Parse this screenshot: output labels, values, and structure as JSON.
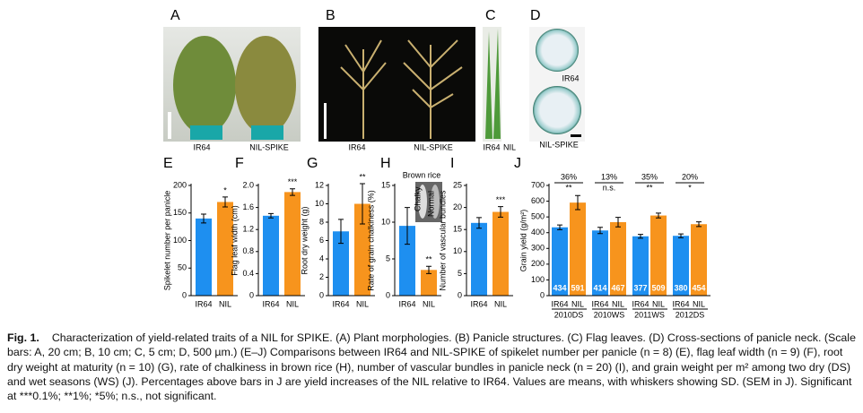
{
  "panels": [
    {
      "letter": "A",
      "labels": [
        "IR64",
        "NIL-SPIKE"
      ]
    },
    {
      "letter": "B",
      "labels": [
        "IR64",
        "NIL-SPIKE"
      ]
    },
    {
      "letter": "C",
      "labels": [
        "IR64",
        "NIL"
      ]
    },
    {
      "letter": "D",
      "labels": [
        "IR64",
        "NIL-SPIKE"
      ]
    }
  ],
  "inset": {
    "title": "Brown rice",
    "labels": [
      "Chalky",
      "Normal"
    ]
  },
  "chart_data": [
    {
      "type": "bar",
      "panel": "E",
      "ylabel": "Spikelet number per panicle",
      "categories": [
        "IR64",
        "NIL"
      ],
      "values": [
        140,
        170
      ],
      "errors": [
        8,
        9
      ],
      "colors": [
        "#1e8ff0",
        "#f7941d"
      ],
      "significance": "*",
      "ylim": [
        0,
        200
      ],
      "yticks": [
        0,
        50,
        100,
        150,
        200
      ]
    },
    {
      "type": "bar",
      "panel": "F",
      "ylabel": "Flag leaf width (cm)",
      "categories": [
        "IR64",
        "NIL"
      ],
      "values": [
        1.45,
        1.88
      ],
      "errors": [
        0.04,
        0.06
      ],
      "colors": [
        "#1e8ff0",
        "#f7941d"
      ],
      "significance": "***",
      "ylim": [
        0,
        2
      ],
      "yticks": [
        0,
        0.4,
        0.8,
        1.2,
        1.6,
        {
          "value": 2,
          "label": "2.0"
        }
      ]
    },
    {
      "type": "bar",
      "panel": "G",
      "ylabel": "Root dry weight (g)",
      "categories": [
        "IR64",
        "NIL"
      ],
      "values": [
        7,
        10
      ],
      "errors": [
        1.3,
        2.2
      ],
      "colors": [
        "#1e8ff0",
        "#f7941d"
      ],
      "significance": "**",
      "ylim": [
        0,
        12
      ],
      "yticks": [
        0,
        2,
        4,
        6,
        8,
        10,
        12
      ]
    },
    {
      "type": "bar",
      "panel": "H",
      "ylabel": "Rate of grain chalkiness (%)",
      "categories": [
        "IR64",
        "NIL"
      ],
      "values": [
        9.5,
        3.5
      ],
      "errors": [
        2.5,
        0.5
      ],
      "colors": [
        "#1e8ff0",
        "#f7941d"
      ],
      "significance": "**",
      "ylim": [
        0,
        15
      ],
      "yticks": [
        0,
        5,
        10,
        15
      ]
    },
    {
      "type": "bar",
      "panel": "I",
      "ylabel": "Number of vascular bundles",
      "categories": [
        "IR64",
        "NIL"
      ],
      "values": [
        16.5,
        19
      ],
      "errors": [
        1.2,
        1.2
      ],
      "colors": [
        "#1e8ff0",
        "#f7941d"
      ],
      "significance": "***",
      "ylim": [
        0,
        25
      ],
      "yticks": [
        0,
        5,
        10,
        15,
        20,
        25
      ]
    },
    {
      "type": "grouped_bar",
      "panel": "J",
      "ylabel": "Grain yield (g/m²)",
      "categories": [
        "2010DS",
        "2010WS",
        "2011WS",
        "2012DS"
      ],
      "series": [
        {
          "name": "IR64",
          "color": "#1e8ff0",
          "values": [
            434,
            414,
            377,
            380
          ],
          "errors": [
            15,
            20,
            12,
            12
          ]
        },
        {
          "name": "NIL",
          "color": "#f7941d",
          "values": [
            591,
            467,
            509,
            454
          ],
          "errors": [
            45,
            30,
            15,
            15
          ]
        }
      ],
      "increases": {
        "values": [
          36,
          13,
          35,
          20
        ],
        "value_labels": [
          "36%",
          "13%",
          "35%",
          "20%"
        ]
      },
      "significance": [
        "**",
        "n.s.",
        "**",
        "*"
      ],
      "ylim": [
        0,
        700
      ],
      "yticks": [
        0,
        100,
        200,
        300,
        400,
        500,
        600,
        700
      ]
    }
  ],
  "caption": {
    "label": "Fig. 1.",
    "text": "Characterization of yield-related traits of a NIL for SPIKE. (A) Plant morphologies. (B) Panicle structures. (C) Flag leaves. (D) Cross-sections of panicle neck. (Scale bars: A, 20 cm; B, 10 cm; C, 5 cm; D, 500 µm.) (E–J) Comparisons between IR64 and NIL-SPIKE of spikelet number per panicle (n = 8) (E), flag leaf width (n = 9) (F), root dry weight at maturity (n = 10) (G), rate of chalkiness in brown rice (H), number of vascular bundles in panicle neck (n = 20) (I), and grain weight per m² among two dry (DS) and wet seasons (WS) (J). Percentages above bars in J are yield increases of the NIL relative to IR64. Values are means, with whiskers showing SD. (SEM in J). Significant at ***0.1%; **1%; *5%; n.s., not significant."
  }
}
